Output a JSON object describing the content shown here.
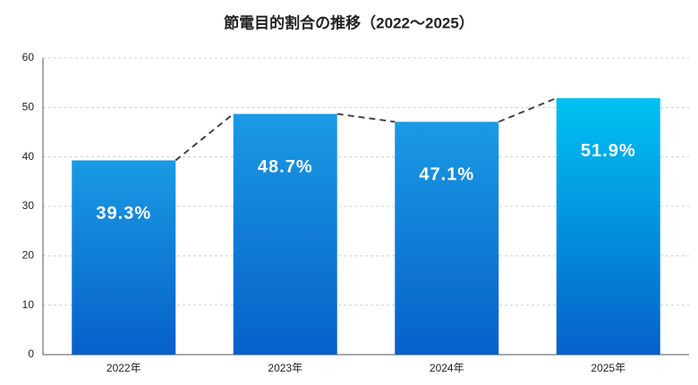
{
  "chart_data": {
    "type": "bar",
    "title": "節電目的割合の推移（2022〜2025）",
    "categories": [
      "2022年",
      "2023年",
      "2024年",
      "2025年"
    ],
    "values": [
      39.3,
      48.7,
      47.1,
      51.9
    ],
    "value_labels": [
      "39.3%",
      "48.7%",
      "47.1%",
      "51.9%"
    ],
    "color": "#0a6fd4",
    "ylim": [
      0,
      60
    ],
    "yticks": [
      0,
      10,
      20,
      30,
      40,
      50,
      60
    ],
    "grid": true
  }
}
